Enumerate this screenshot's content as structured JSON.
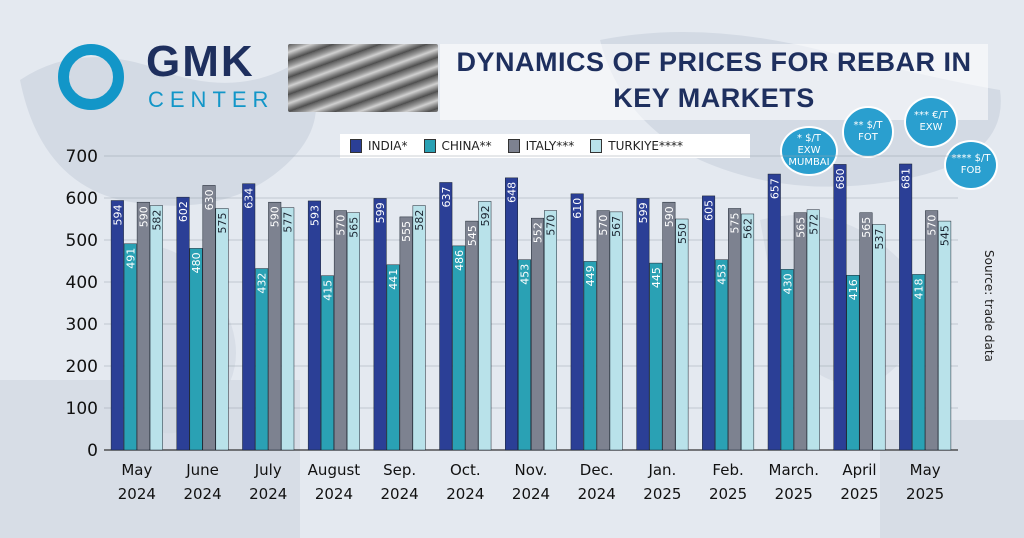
{
  "brand": {
    "name": "GMK",
    "sub": "CENTER"
  },
  "chart_data": {
    "type": "bar",
    "title": "DYNAMICS OF PRICES FOR REBAR IN KEY MARKETS",
    "categories": [
      [
        "May",
        "2024"
      ],
      [
        "June",
        "2024"
      ],
      [
        "July",
        "2024"
      ],
      [
        "August",
        "2024"
      ],
      [
        "Sep.",
        "2024"
      ],
      [
        "Oct.",
        "2024"
      ],
      [
        "Nov.",
        "2024"
      ],
      [
        "Dec.",
        "2024"
      ],
      [
        "Jan.",
        "2025"
      ],
      [
        "Feb.",
        "2025"
      ],
      [
        "March.",
        "2025"
      ],
      [
        "April",
        "2025"
      ],
      [
        "May",
        "2025"
      ]
    ],
    "series": [
      {
        "name": "INDIA*",
        "color": "#2b3f96",
        "values": [
          594,
          602,
          634,
          593,
          599,
          637,
          648,
          610,
          599,
          605,
          657,
          680,
          681
        ]
      },
      {
        "name": "CHINA**",
        "color": "#2aa1b4",
        "values": [
          491,
          480,
          432,
          415,
          441,
          486,
          453,
          449,
          445,
          453,
          430,
          416,
          418
        ]
      },
      {
        "name": "ITALY***",
        "color": "#7d8290",
        "values": [
          590,
          630,
          590,
          570,
          555,
          545,
          552,
          570,
          590,
          575,
          565,
          565,
          570
        ]
      },
      {
        "name": "TURKIYE****",
        "color": "#b9e2ea",
        "values": [
          582,
          575,
          577,
          565,
          582,
          592,
          570,
          567,
          550,
          562,
          572,
          537,
          545
        ]
      }
    ],
    "ylim": [
      0,
      700
    ],
    "yticks": [
      0,
      100,
      200,
      300,
      400,
      500,
      600,
      700
    ],
    "grid": true,
    "legend_position": "top",
    "notes": [
      "* $/T EXW MUMBAI",
      "** $/T FOT",
      "*** €/T EXW",
      "**** $/T FOB"
    ],
    "source": "Source: trade data"
  }
}
